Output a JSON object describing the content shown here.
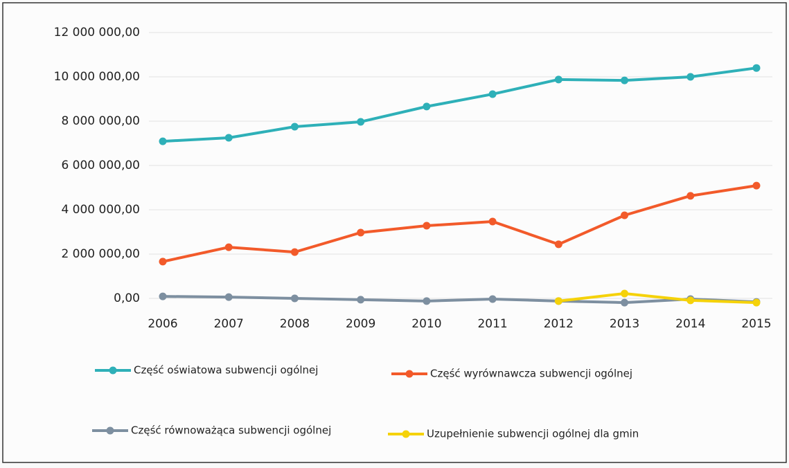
{
  "chart_data": {
    "type": "line",
    "categories": [
      "2006",
      "2007",
      "2008",
      "2009",
      "2010",
      "2011",
      "2012",
      "2013",
      "2014",
      "2015"
    ],
    "series": [
      {
        "name": "Część oświatowa subwencji ogólnej",
        "color": "#2eb0b8",
        "values": [
          7090000,
          7250000,
          7750000,
          7970000,
          8660000,
          9220000,
          9880000,
          9840000,
          10000000,
          10400000
        ]
      },
      {
        "name": "Część wyrównawcza subwencji ogólnej",
        "color": "#f25a2a",
        "values": [
          1660000,
          2310000,
          2090000,
          2970000,
          3280000,
          3470000,
          2440000,
          3750000,
          4630000,
          5090000
        ]
      },
      {
        "name": "Część równoważąca subwencji ogólnej",
        "color": "#7d8fa0",
        "values": [
          90000,
          60000,
          0,
          -60000,
          -120000,
          -30000,
          -120000,
          -190000,
          -30000,
          -160000
        ]
      },
      {
        "name": "Uzupełnienie subwencji ogólnej dla gmin",
        "color": "#f5d20a",
        "values": [
          null,
          null,
          null,
          null,
          null,
          null,
          -120000,
          220000,
          -90000,
          -190000
        ]
      }
    ],
    "ylim": [
      0,
      12000000
    ],
    "yticks": [
      {
        "value": 0,
        "label": "0,00"
      },
      {
        "value": 2000000,
        "label": "2 000 000,00"
      },
      {
        "value": 4000000,
        "label": "4 000 000,00"
      },
      {
        "value": 6000000,
        "label": "6 000 000,00"
      },
      {
        "value": 8000000,
        "label": "8 000 000,00"
      },
      {
        "value": 10000000,
        "label": "10 000 000,00"
      },
      {
        "value": 12000000,
        "label": "12 000 000,00"
      }
    ],
    "grid": true
  }
}
